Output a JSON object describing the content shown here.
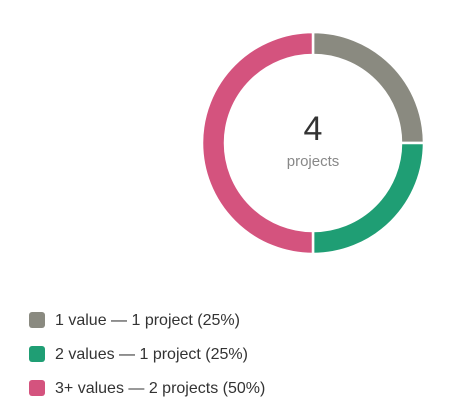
{
  "chart_data": {
    "type": "donut",
    "center_value": 4,
    "center_label": "projects",
    "categories": [
      "1 value — 1 project (25%)",
      "2 values — 1 project (25%)",
      "3+ values — 2 projects (50%)"
    ],
    "values": [
      25,
      25,
      50
    ],
    "colors": [
      "#8a8a80",
      "#1f9e74",
      "#d4537e"
    ],
    "legend": "bottom-left"
  }
}
